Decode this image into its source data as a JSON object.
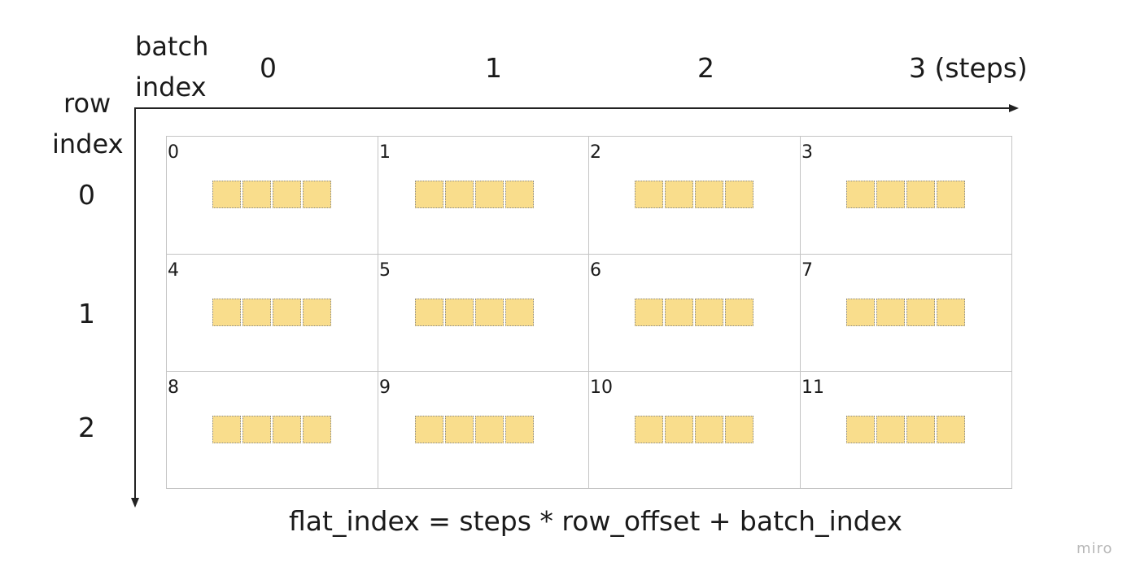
{
  "x_axis": {
    "title_line1": "batch",
    "title_line2": "index",
    "ticks": [
      "0",
      "1",
      "2",
      "3 (steps)"
    ]
  },
  "y_axis": {
    "title_line1": "row",
    "title_line2": "index",
    "ticks": [
      "0",
      "1",
      "2"
    ]
  },
  "cells": [
    [
      "0",
      "1",
      "2",
      "3"
    ],
    [
      "4",
      "5",
      "6",
      "7"
    ],
    [
      "8",
      "9",
      "10",
      "11"
    ]
  ],
  "slots_per_cell": 4,
  "slot_color": "#f9dd8c",
  "formula": "flat_index = steps * row_offset + batch_index",
  "watermark": "miro"
}
